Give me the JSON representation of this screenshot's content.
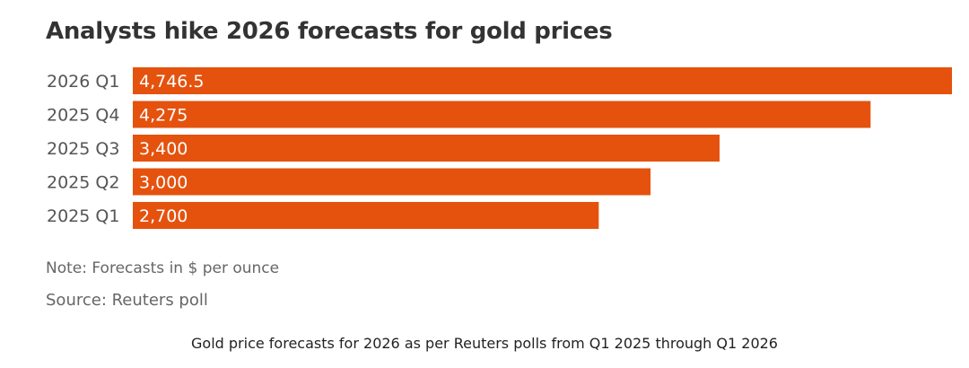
{
  "title": "Analysts hike 2026 forecasts for gold prices",
  "note": "Note: Forecasts in $ per ounce",
  "source": "Source: Reuters poll",
  "caption": "Gold price forecasts for 2026 as per Reuters polls from Q1 2025 through Q1 2026",
  "colors": {
    "bar": "#E5520E",
    "value_text": "#ffffff",
    "category_text": "#555555"
  },
  "chart_data": {
    "type": "bar",
    "orientation": "horizontal",
    "categories": [
      "2026 Q1",
      "2025 Q4",
      "2025 Q3",
      "2025 Q2",
      "2025 Q1"
    ],
    "values": [
      4746.5,
      4275,
      3400,
      3000,
      2700
    ],
    "value_labels": [
      "4,746.5",
      "4,275",
      "3,400",
      "3,000",
      "2,700"
    ],
    "xlim": [
      0,
      4746.5
    ],
    "grid": false,
    "legend": "none"
  }
}
